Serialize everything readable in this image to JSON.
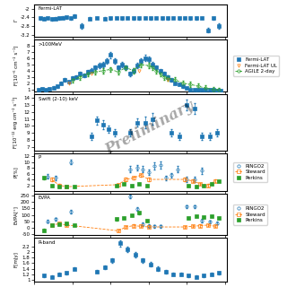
{
  "chart_data": [
    {
      "type": "scatter",
      "title": "Fermi-LAT",
      "y_label": "Γ",
      "xlim": [
        0.0,
        1.01
      ],
      "xticks": [
        0,
        0.2,
        0.4,
        0.6,
        0.8,
        1.0
      ],
      "ylim": [
        -3.3,
        -1.8
      ],
      "yticks": [
        -3.2,
        -2.8,
        -2.4,
        -2
      ],
      "tick_labels": "y",
      "grid": false,
      "series": [
        {
          "marker": "filled_square",
          "line_style": "none",
          "x": [
            0.03,
            0.05,
            0.07,
            0.09,
            0.11,
            0.13,
            0.15,
            0.17,
            0.19,
            0.21,
            0.25,
            0.29,
            0.33,
            0.37,
            0.4,
            0.43,
            0.46,
            0.49,
            0.52,
            0.55,
            0.58,
            0.61,
            0.64,
            0.67,
            0.7,
            0.73,
            0.76,
            0.79,
            0.82,
            0.85,
            0.88,
            0.91,
            0.94,
            0.97
          ],
          "values": [
            -2.44,
            -2.46,
            -2.43,
            -2.48,
            -2.45,
            -2.44,
            -2.42,
            -2.4,
            -2.44,
            -2.35,
            -2.8,
            -2.45,
            -2.43,
            -2.45,
            -2.44,
            -2.43,
            -2.44,
            -2.43,
            -2.44,
            -2.44,
            -2.43,
            -2.44,
            -2.43,
            -2.44,
            -2.44,
            -2.43,
            -2.44,
            -2.43,
            -2.44,
            -2.44,
            -2.43,
            -3.0,
            -2.44,
            -2.8
          ],
          "error": [
            0.06,
            0.06,
            0.06,
            0.06,
            0.06,
            0.06,
            0.06,
            0.06,
            0.06,
            0.07,
            0.12,
            0.06,
            0.06,
            0.06,
            0.06,
            0.06,
            0.06,
            0.06,
            0.06,
            0.06,
            0.06,
            0.06,
            0.06,
            0.06,
            0.06,
            0.06,
            0.06,
            0.06,
            0.06,
            0.06,
            0.06,
            0.1,
            0.06,
            0.12
          ]
        }
      ]
    },
    {
      "type": "scatter",
      "title": ">100MeV",
      "y_label": "F[10⁻⁶ cm⁻² s⁻¹]",
      "xlim": [
        0.0,
        1.01
      ],
      "xticks": [
        0,
        0.2,
        0.4,
        0.6,
        0.8,
        1.0
      ],
      "ylim": [
        0.6,
        9.0
      ],
      "yticks": [
        1,
        2,
        3,
        4,
        5,
        6,
        7,
        8
      ],
      "tick_labels": "y",
      "grid": false,
      "legend": "right",
      "series": [
        {
          "name": "Fermi-LAT",
          "marker": "filled_square",
          "line_style": "none",
          "x": [
            0.02,
            0.04,
            0.06,
            0.08,
            0.1,
            0.12,
            0.14,
            0.16,
            0.18,
            0.2,
            0.22,
            0.24,
            0.26,
            0.28,
            0.3,
            0.32,
            0.34,
            0.36,
            0.38,
            0.4,
            0.42,
            0.44,
            0.46,
            0.48,
            0.5,
            0.52,
            0.54,
            0.56,
            0.58,
            0.6,
            0.62,
            0.64,
            0.66,
            0.68,
            0.7,
            0.72,
            0.74,
            0.76,
            0.78,
            0.8,
            0.82,
            0.84,
            0.86,
            0.88,
            0.9,
            0.92,
            0.94,
            0.96,
            0.98
          ],
          "values": [
            1.0,
            1.1,
            1.0,
            1.1,
            1.3,
            1.5,
            2.0,
            2.5,
            2.2,
            2.8,
            3.0,
            3.5,
            3.2,
            3.8,
            4.0,
            4.5,
            4.8,
            5.0,
            5.5,
            6.5,
            5.5,
            4.5,
            5.0,
            4.5,
            3.5,
            4.0,
            4.8,
            5.5,
            6.0,
            5.8,
            5.0,
            4.5,
            4.0,
            3.5,
            3.0,
            2.5,
            2.0,
            1.8,
            1.5,
            1.2,
            1.0,
            0.9,
            0.9,
            0.9,
            0.9,
            0.9,
            0.9,
            0.8,
            0.8
          ],
          "error": [
            0.15,
            0.15,
            0.15,
            0.15,
            0.2,
            0.2,
            0.2,
            0.25,
            0.25,
            0.3,
            0.3,
            0.3,
            0.3,
            0.35,
            0.35,
            0.4,
            0.4,
            0.4,
            0.45,
            0.5,
            0.45,
            0.4,
            0.4,
            0.4,
            0.35,
            0.35,
            0.4,
            0.45,
            0.5,
            0.45,
            0.4,
            0.35,
            0.3,
            0.3,
            0.25,
            0.25,
            0.2,
            0.2,
            0.2,
            0.15,
            0.15,
            0.15,
            0.15,
            0.15,
            0.15,
            0.15,
            0.15,
            0.12,
            0.12
          ]
        },
        {
          "name": "Fermi-LAT UL",
          "marker": "open_triangle_down",
          "line_style": "none",
          "x": [
            0.18,
            0.3,
            0.55,
            0.7
          ],
          "values": [
            2.0,
            3.5,
            4.0,
            2.5
          ]
        },
        {
          "name": "AGILE 2-day",
          "marker": "open_circle",
          "line_style": "dashed",
          "x": [
            0.2,
            0.24,
            0.28,
            0.32,
            0.36,
            0.4,
            0.44,
            0.48,
            0.52,
            0.56,
            0.6,
            0.62,
            0.64,
            0.66,
            0.68,
            0.7,
            0.74,
            0.78,
            0.82,
            0.86,
            0.9,
            0.94,
            0.97
          ],
          "values": [
            2.5,
            3.0,
            3.5,
            3.8,
            4.0,
            4.2,
            3.8,
            4.5,
            4.0,
            5.0,
            4.8,
            4.5,
            4.0,
            3.5,
            3.0,
            2.8,
            2.5,
            2.0,
            1.8,
            1.5,
            1.2,
            1.0,
            0.9
          ],
          "error": [
            0.4,
            0.4,
            0.4,
            0.4,
            0.4,
            0.4,
            0.4,
            0.4,
            0.4,
            0.4,
            0.4,
            0.4,
            0.4,
            0.4,
            0.4,
            0.4,
            0.4,
            0.4,
            0.4,
            0.4,
            0.4,
            0.4,
            0.4
          ]
        }
      ]
    },
    {
      "type": "scatter",
      "title": "Swift (2-10) keV",
      "y_label": "F[10⁻¹² erg cm⁻² s⁻¹]",
      "annotation": "Preliminary",
      "xlim": [
        0.0,
        1.01
      ],
      "xticks": [
        0,
        0.2,
        0.4,
        0.6,
        0.8,
        1.0
      ],
      "ylim": [
        6.5,
        14.5
      ],
      "yticks": [
        7,
        8,
        9,
        10,
        11,
        12,
        13,
        14
      ],
      "tick_labels": "y",
      "grid": false,
      "series": [
        {
          "marker": "filled_square",
          "line_style": "none",
          "x": [
            0.3,
            0.33,
            0.36,
            0.39,
            0.42,
            0.5,
            0.54,
            0.58,
            0.62,
            0.72,
            0.76,
            0.8,
            0.84,
            0.88,
            0.92,
            0.96
          ],
          "values": [
            8.5,
            10.8,
            10.2,
            9.5,
            9.0,
            9.0,
            10.5,
            10.5,
            11.0,
            9.0,
            8.5,
            13.0,
            12.5,
            8.5,
            8.5,
            9.0
          ],
          "error": [
            0.5,
            0.6,
            0.6,
            0.5,
            0.5,
            0.5,
            0.6,
            0.8,
            0.8,
            0.5,
            0.5,
            0.8,
            0.8,
            0.5,
            0.5,
            0.5
          ]
        }
      ]
    },
    {
      "type": "scatter",
      "title": "P",
      "y_label": "P[%]",
      "xlim": [
        0.0,
        1.01
      ],
      "xticks": [
        0,
        0.2,
        0.4,
        0.6,
        0.8,
        1.0
      ],
      "ylim": [
        0,
        13
      ],
      "yticks": [
        2,
        4,
        6,
        8,
        10,
        12
      ],
      "tick_labels": "y",
      "grid": false,
      "legend": "right",
      "series": [
        {
          "name": "RINGO2",
          "marker": "open_circle",
          "line_style": "none",
          "x": [
            0.07,
            0.11,
            0.19,
            0.5,
            0.54,
            0.57,
            0.6,
            0.63,
            0.66,
            0.69,
            0.72,
            0.75,
            0.8,
            0.84,
            0.88
          ],
          "values": [
            5.0,
            4.5,
            10.0,
            7.5,
            8.0,
            7.5,
            6.5,
            8.5,
            9.0,
            4.5,
            5.5,
            7.5,
            4.0,
            4.0,
            7.0
          ],
          "error": [
            0.8,
            0.8,
            0.8,
            1.0,
            1.0,
            1.0,
            1.0,
            1.2,
            1.2,
            0.8,
            0.8,
            1.0,
            0.8,
            0.8,
            1.0
          ]
        },
        {
          "name": "Steward",
          "marker": "open_square",
          "line_style": "dashed",
          "x": [
            0.09,
            0.13,
            0.17,
            0.44,
            0.48,
            0.52,
            0.56,
            0.6,
            0.79,
            0.83,
            0.87,
            0.91,
            0.95
          ],
          "values": [
            4.0,
            2.0,
            1.5,
            2.2,
            4.0,
            4.5,
            5.5,
            4.0,
            4.0,
            3.5,
            2.5,
            2.0,
            3.5
          ],
          "error": [
            0.5,
            0.4,
            0.4,
            0.4,
            0.5,
            0.5,
            0.5,
            0.5,
            0.5,
            0.5,
            0.4,
            0.4,
            0.5
          ]
        },
        {
          "name": "Perkins",
          "marker": "filled_square",
          "line_style": "none",
          "x": [
            0.05,
            0.09,
            0.13,
            0.17,
            0.21,
            0.43,
            0.47,
            0.51,
            0.55,
            0.59,
            0.81,
            0.85,
            0.89,
            0.93,
            0.97
          ],
          "values": [
            4.5,
            2.0,
            1.5,
            1.5,
            1.5,
            2.0,
            2.5,
            2.0,
            2.5,
            2.0,
            2.0,
            1.5,
            2.0,
            2.5,
            3.5
          ],
          "error": [
            0.5,
            0.3,
            0.3,
            0.3,
            0.3,
            0.3,
            0.3,
            0.3,
            0.3,
            0.3,
            0.3,
            0.3,
            0.3,
            0.3,
            0.3
          ]
        }
      ]
    },
    {
      "type": "scatter",
      "title": "EVPA",
      "y_label": "EVPA[°]",
      "xlim": [
        0.0,
        1.01
      ],
      "xticks": [
        0,
        0.2,
        0.4,
        0.6,
        0.8,
        1.0
      ],
      "ylim": [
        -60,
        265
      ],
      "yticks": [
        -50,
        0,
        50,
        100,
        150,
        200,
        250
      ],
      "tick_labels": "y",
      "grid": false,
      "legend": "right",
      "series": [
        {
          "name": "RINGO2",
          "marker": "open_circle",
          "line_style": "none",
          "x": [
            0.07,
            0.11,
            0.19,
            0.5,
            0.54,
            0.57,
            0.6,
            0.63,
            0.66,
            0.8,
            0.84,
            0.88,
            0.92,
            0.96
          ],
          "values": [
            50,
            65,
            125,
            245,
            145,
            25,
            15,
            10,
            10,
            165,
            165,
            55,
            45,
            35
          ],
          "error": [
            12,
            12,
            12,
            15,
            15,
            12,
            12,
            12,
            12,
            12,
            12,
            12,
            12,
            12
          ]
        },
        {
          "name": "Steward",
          "marker": "open_square",
          "line_style": "dashed",
          "x": [
            0.09,
            0.13,
            0.17,
            0.44,
            0.48,
            0.52,
            0.56,
            0.6,
            0.79,
            0.83,
            0.87,
            0.91,
            0.95
          ],
          "values": [
            20,
            30,
            20,
            -25,
            5,
            15,
            10,
            5,
            5,
            10,
            15,
            20,
            10
          ],
          "error": [
            8,
            8,
            8,
            8,
            8,
            8,
            8,
            8,
            8,
            8,
            8,
            8,
            8
          ]
        },
        {
          "name": "Perkins",
          "marker": "filled_square",
          "line_style": "none",
          "x": [
            0.05,
            0.09,
            0.13,
            0.17,
            0.21,
            0.43,
            0.47,
            0.51,
            0.55,
            0.59,
            0.81,
            0.85,
            0.89,
            0.93,
            0.97
          ],
          "values": [
            -20,
            20,
            25,
            30,
            20,
            65,
            75,
            95,
            115,
            55,
            75,
            90,
            80,
            88,
            78
          ],
          "error": [
            8,
            8,
            8,
            8,
            8,
            8,
            8,
            8,
            8,
            8,
            8,
            8,
            8,
            8,
            8
          ]
        }
      ]
    },
    {
      "type": "scatter",
      "title": "R-band",
      "y_label": "F[mJy]",
      "xlim": [
        0.0,
        1.01
      ],
      "xticks": [
        0,
        0.2,
        0.4,
        0.6,
        0.8,
        1.0
      ],
      "ylim": [
        0.95,
        2.5
      ],
      "yticks": [
        1,
        1.2,
        1.4,
        1.6,
        1.8,
        2,
        2.2
      ],
      "tick_labels": "y",
      "grid": false,
      "series": [
        {
          "marker": "filled_square",
          "line_style": "none",
          "x": [
            0.05,
            0.09,
            0.13,
            0.17,
            0.21,
            0.33,
            0.37,
            0.41,
            0.45,
            0.49,
            0.53,
            0.57,
            0.61,
            0.65,
            0.69,
            0.73,
            0.77,
            0.81,
            0.85,
            0.89,
            0.93,
            0.97
          ],
          "values": [
            1.15,
            1.1,
            1.2,
            1.25,
            1.4,
            1.3,
            1.45,
            1.7,
            2.3,
            2.1,
            1.9,
            1.7,
            1.55,
            1.4,
            1.3,
            1.2,
            1.2,
            1.15,
            1.1,
            1.15,
            1.2,
            1.25
          ],
          "error": [
            0.05,
            0.05,
            0.05,
            0.05,
            0.05,
            0.05,
            0.06,
            0.08,
            0.1,
            0.1,
            0.1,
            0.08,
            0.08,
            0.07,
            0.07,
            0.05,
            0.05,
            0.05,
            0.05,
            0.05,
            0.05,
            0.05
          ]
        }
      ]
    }
  ]
}
